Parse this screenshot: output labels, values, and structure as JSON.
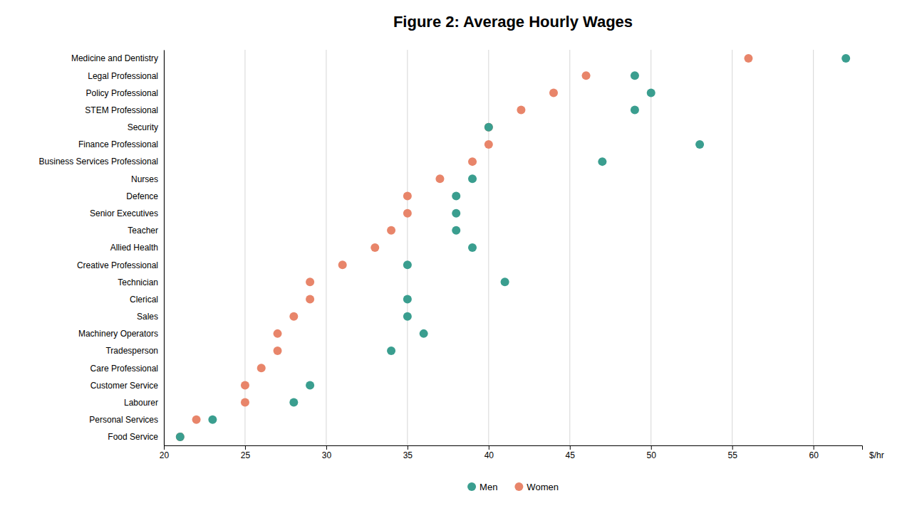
{
  "chart_data": {
    "type": "dot",
    "title": "Figure 2:  Average Hourly Wages",
    "xlabel": "$/hr",
    "categories": [
      "Medicine and Dentistry",
      "Legal Professional",
      "Policy Professional",
      "STEM Professional",
      "Security",
      "Finance Professional",
      "Business Services Professional",
      "Nurses",
      "Defence",
      "Senior Executives",
      "Teacher",
      "Allied Health",
      "Creative Professional",
      "Technician",
      "Clerical",
      "Sales",
      "Machinery Operators",
      "Tradesperson",
      "Care Professional",
      "Customer Service",
      "Labourer",
      "Personal Services",
      "Food Service"
    ],
    "series": [
      {
        "name": "Men",
        "color": "#3a9e8f",
        "values": [
          62,
          49,
          50,
          49,
          40,
          53,
          47,
          39,
          38,
          38,
          38,
          39,
          35,
          41,
          35,
          35,
          36,
          34,
          null,
          29,
          28,
          23,
          21
        ]
      },
      {
        "name": "Women",
        "color": "#e8856a",
        "values": [
          56,
          46,
          44,
          42,
          40,
          40,
          39,
          37,
          35,
          35,
          34,
          33,
          31,
          29,
          29,
          28,
          27,
          27,
          26,
          25,
          25,
          22,
          21
        ]
      }
    ],
    "xlim": [
      20,
      63
    ],
    "xticks": [
      20,
      25,
      30,
      35,
      40,
      45,
      50,
      55,
      60
    ],
    "grid": true,
    "legend": "bottom"
  }
}
